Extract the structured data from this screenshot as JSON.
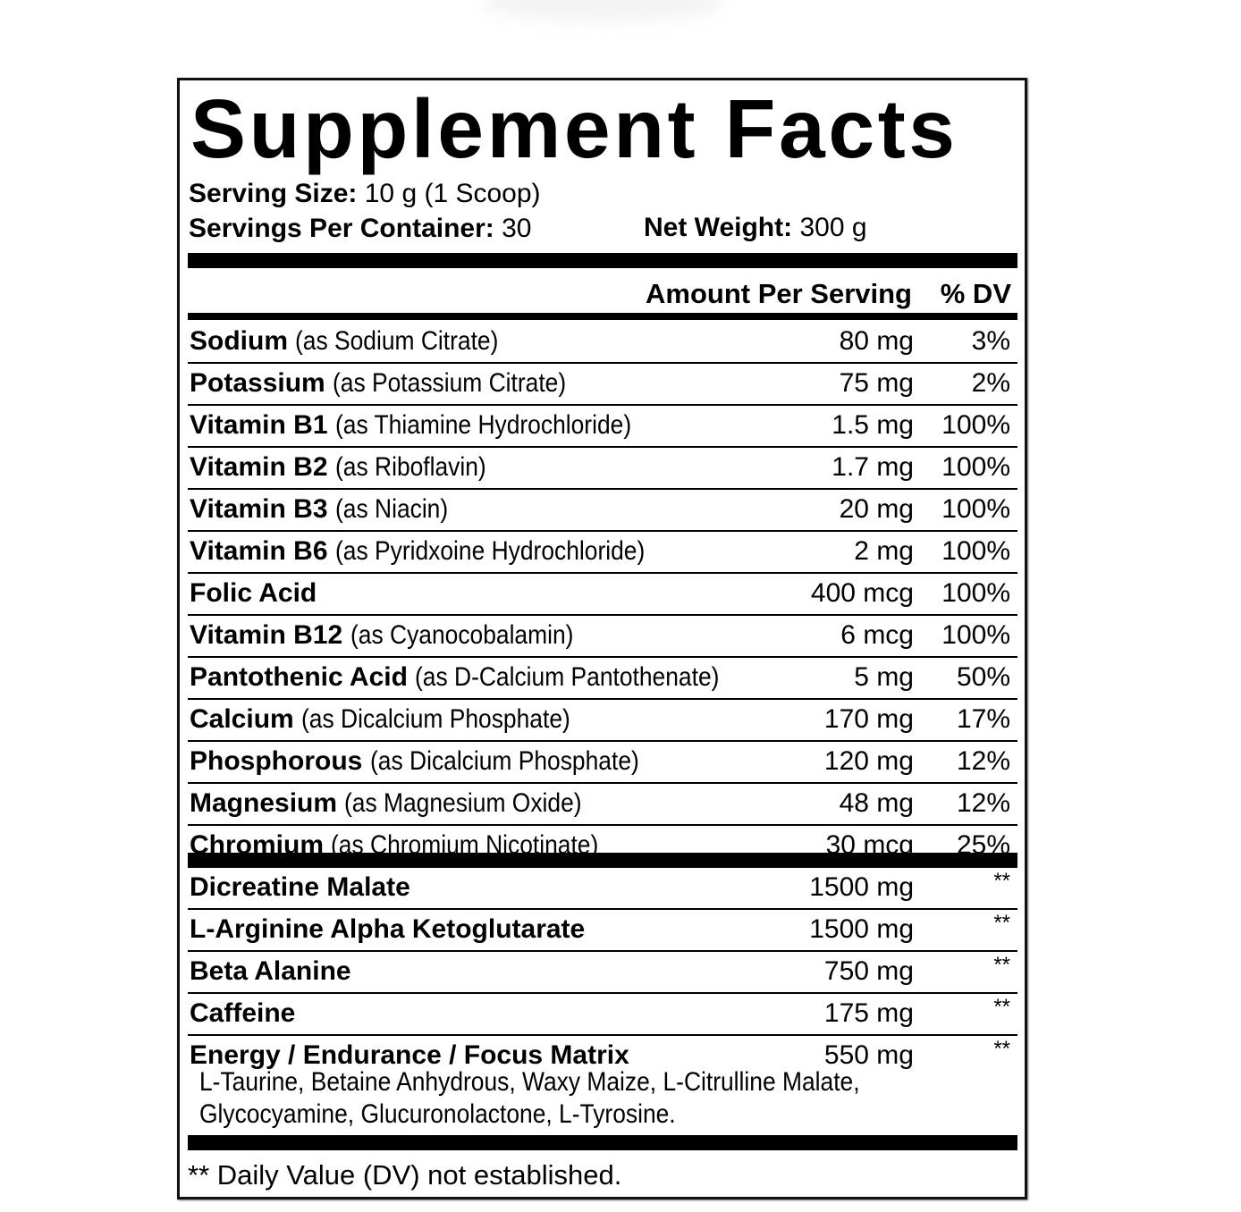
{
  "title": "Supplement Facts",
  "serving_size": {
    "label": "Serving Size:",
    "value": "10 g (1 Scoop)"
  },
  "servings_per_container": {
    "label": "Servings Per Container:",
    "value": "30"
  },
  "net_weight": {
    "label": "Net Weight:",
    "value": "300 g"
  },
  "header": {
    "amount": "Amount Per Serving",
    "dv": "% DV"
  },
  "vitamins": [
    {
      "name": "Sodium",
      "source": "(as Sodium Citrate)",
      "amount": "80 mg",
      "dv": "3%"
    },
    {
      "name": "Potassium",
      "source": "(as Potassium Citrate)",
      "amount": "75 mg",
      "dv": "2%"
    },
    {
      "name": "Vitamin B1",
      "source": "(as Thiamine Hydrochloride)",
      "amount": "1.5 mg",
      "dv": "100%"
    },
    {
      "name": "Vitamin B2",
      "source": "(as Riboflavin)",
      "amount": "1.7 mg",
      "dv": "100%"
    },
    {
      "name": "Vitamin B3",
      "source": "(as Niacin)",
      "amount": "20 mg",
      "dv": "100%"
    },
    {
      "name": "Vitamin B6",
      "source": "(as Pyridxoine Hydrochloride)",
      "amount": "2 mg",
      "dv": "100%"
    },
    {
      "name": "Folic Acid",
      "source": "",
      "amount": "400 mcg",
      "dv": "100%"
    },
    {
      "name": "Vitamin B12",
      "source": "(as Cyanocobalamin)",
      "amount": "6 mcg",
      "dv": "100%"
    },
    {
      "name": "Pantothenic Acid",
      "source": "(as D-Calcium Pantothenate)",
      "amount": "5 mg",
      "dv": "50%"
    },
    {
      "name": "Calcium",
      "source": "(as Dicalcium Phosphate)",
      "amount": "170 mg",
      "dv": "17%"
    },
    {
      "name": "Phosphorous",
      "source": "(as Dicalcium Phosphate)",
      "amount": "120 mg",
      "dv": "12%"
    },
    {
      "name": "Magnesium",
      "source": "(as Magnesium Oxide)",
      "amount": "48 mg",
      "dv": "12%"
    },
    {
      "name": "Chromium",
      "source": "(as Chromium Nicotinate)",
      "amount": "30 mcg",
      "dv": "25%"
    }
  ],
  "blends": [
    {
      "name": "Dicreatine Malate",
      "amount": "1500 mg",
      "dv": "**"
    },
    {
      "name": "L-Arginine Alpha Ketoglutarate",
      "amount": "1500 mg",
      "dv": "**"
    },
    {
      "name": "Beta Alanine",
      "amount": "750 mg",
      "dv": "**"
    },
    {
      "name": "Caffeine",
      "amount": "175 mg",
      "dv": "**"
    },
    {
      "name": "Energy / Endurance / Focus Matrix",
      "amount": "550 mg",
      "dv": "**"
    }
  ],
  "matrix_ingredients": [
    "L-Taurine, Betaine Anhydrous, Waxy Maize, L-Citrulline Malate,",
    "Glycocyamine, Glucuronolactone, L-Tyrosine."
  ],
  "footnote": "** Daily Value (DV) not established."
}
